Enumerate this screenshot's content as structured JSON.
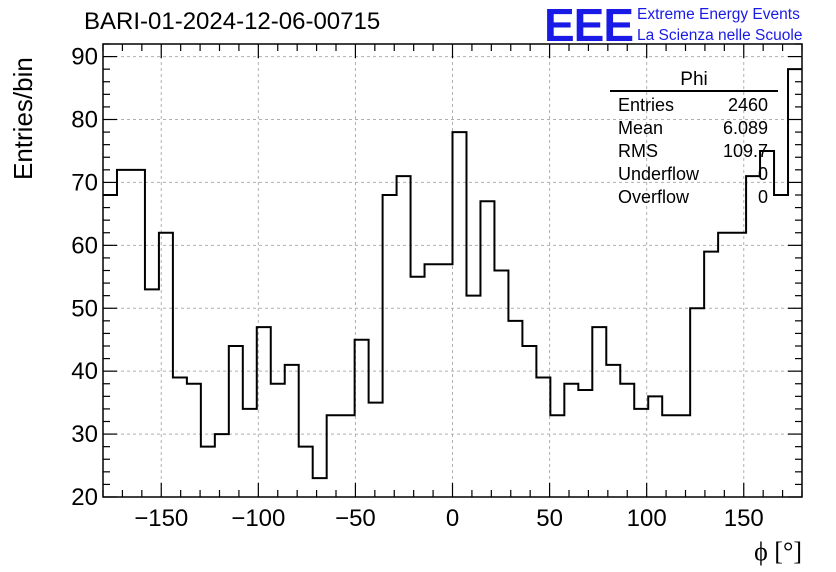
{
  "header": {
    "title": "BARI-01-2024-12-06-00715",
    "logo": "EEE",
    "logo_line1": "Extreme Energy Events",
    "logo_line2": "La Scienza nelle Scuole"
  },
  "stats": {
    "name": "Phi",
    "rows": [
      {
        "key": "Entries",
        "value": "2460"
      },
      {
        "key": "Mean",
        "value": "6.089"
      },
      {
        "key": "RMS",
        "value": "109.7"
      },
      {
        "key": "Underflow",
        "value": "0"
      },
      {
        "key": "Overflow",
        "value": "0"
      }
    ]
  },
  "colors": {
    "accent": "#1a1ae6",
    "line": "#000000",
    "grid": "#b0b0b0"
  },
  "chart_data": {
    "type": "histogram",
    "title": "BARI-01-2024-12-06-00715",
    "xlabel": "ϕ [°]",
    "ylabel": "Entries/bin",
    "xlim": [
      -180,
      180
    ],
    "ylim": [
      20,
      92
    ],
    "grid": true,
    "bin_width": 7.2,
    "bin_edges_start": -180,
    "values": [
      68,
      72,
      72,
      53,
      62,
      39,
      38,
      28,
      30,
      44,
      34,
      47,
      38,
      41,
      28,
      23,
      33,
      33,
      45,
      35,
      68,
      71,
      55,
      57,
      57,
      78,
      52,
      67,
      56,
      48,
      44,
      39,
      33,
      38,
      37,
      47,
      41,
      38,
      34,
      36,
      33,
      33,
      50,
      59,
      62,
      62,
      71,
      75,
      68,
      88
    ],
    "xticks": [
      -150,
      -100,
      -50,
      0,
      50,
      100,
      150
    ],
    "xtick_labels": [
      "−150",
      "−100",
      "−50",
      "0",
      "50",
      "100",
      "150"
    ],
    "yticks": [
      20,
      30,
      40,
      50,
      60,
      70,
      80,
      90
    ],
    "ytick_labels": [
      "20",
      "30",
      "40",
      "50",
      "60",
      "70",
      "80",
      "90"
    ]
  }
}
